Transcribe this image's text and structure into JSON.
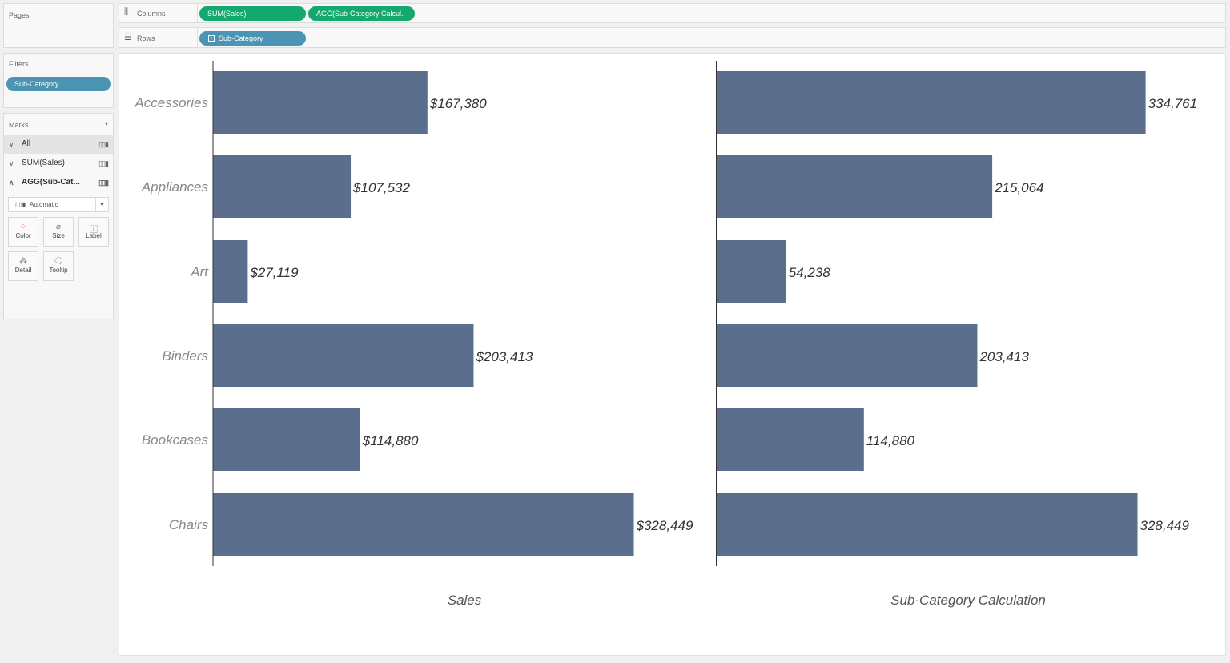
{
  "shelves": {
    "pages_label": "Pages",
    "columns_label": "Columns",
    "rows_label": "Rows",
    "filters_label": "Filters",
    "columns": [
      "SUM(Sales)",
      "AGG(Sub-Category Calcul.."
    ],
    "rows": [
      "Sub-Category"
    ],
    "filters": [
      "Sub-Category"
    ]
  },
  "marks": {
    "title": "Marks",
    "cards": [
      {
        "label": "All",
        "chevron": "down"
      },
      {
        "label": "SUM(Sales)",
        "chevron": "down"
      },
      {
        "label": "AGG(Sub-Cat...",
        "chevron": "up"
      }
    ],
    "mark_type": "Automatic",
    "buttons": [
      "Color",
      "Size",
      "Label",
      "Detail",
      "Tooltip"
    ]
  },
  "colors": {
    "bar": "#5b6e8c",
    "green_pill": "#13a86e",
    "blue_pill": "#4b94b4"
  },
  "chart_data": {
    "type": "bar",
    "orientation": "horizontal",
    "categories": [
      "Accessories",
      "Appliances",
      "Art",
      "Binders",
      "Bookcases",
      "Chairs"
    ],
    "panes": [
      {
        "xlabel": "Sales",
        "values": [
          167380,
          107532,
          27119,
          203413,
          114880,
          328449
        ],
        "labels": [
          "$167,380",
          "$107,532",
          "$27,119",
          "$203,413",
          "$114,880",
          "$328,449"
        ]
      },
      {
        "xlabel": "Sub-Category Calculation",
        "values": [
          334761,
          215064,
          54238,
          203413,
          114880,
          328449
        ],
        "labels": [
          "334,761",
          "215,064",
          "54,238",
          "203,413",
          "114,880",
          "328,449"
        ]
      }
    ],
    "grid": false
  }
}
